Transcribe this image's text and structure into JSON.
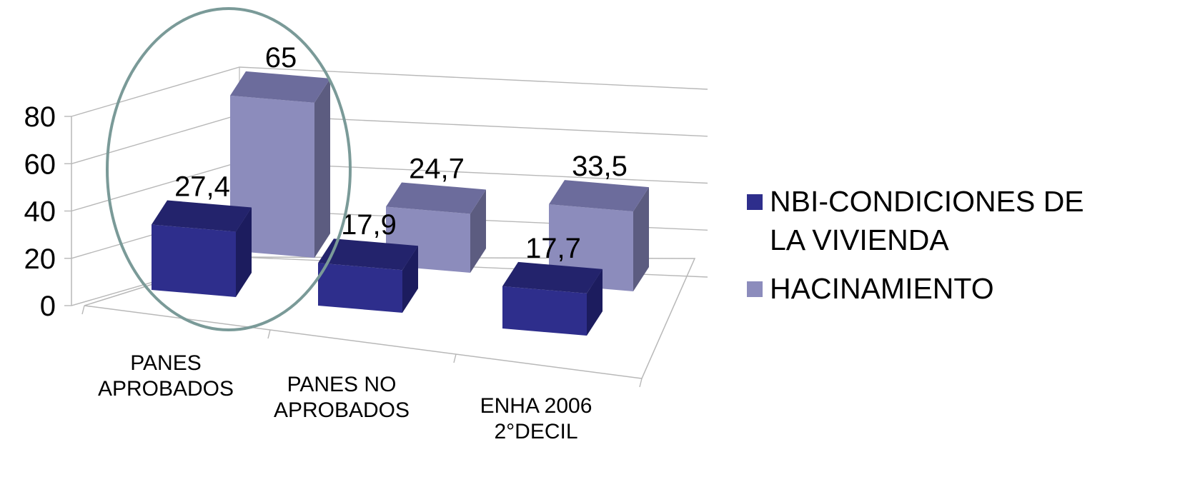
{
  "chart_data": {
    "type": "bar",
    "categories": [
      [
        "PANES",
        "APROBADOS"
      ],
      [
        "PANES NO",
        "APROBADOS"
      ],
      [
        "ENHA 2006",
        "2°DECIL"
      ]
    ],
    "series": [
      {
        "name": [
          "NBI-CONDICIONES DE",
          "LA VIVIENDA"
        ],
        "values": [
          27.4,
          17.9,
          17.7
        ],
        "labels": [
          "27,4",
          "17,9",
          "17,7"
        ]
      },
      {
        "name": [
          "HACINAMIENTO"
        ],
        "values": [
          65,
          24.7,
          33.5
        ],
        "labels": [
          "65",
          "24,7",
          "33,5"
        ]
      }
    ],
    "y_ticks": [
      "0",
      "20",
      "40",
      "60",
      "80"
    ],
    "ylim": [
      0,
      80
    ],
    "grid": true,
    "legend_position": "right",
    "style": "3d-column",
    "colors": {
      "series_front": [
        "#2e2e8c",
        "#8c8cbc"
      ],
      "series_top": [
        "#23236c",
        "#6c6c9c"
      ],
      "series_side": [
        "#1c1c5e",
        "#5c5c80"
      ],
      "grid": "#b8b8b8",
      "highlight_ellipse": "#7a9a98"
    },
    "annotations": [
      "ellipse highlighting PANES APROBADOS"
    ]
  }
}
